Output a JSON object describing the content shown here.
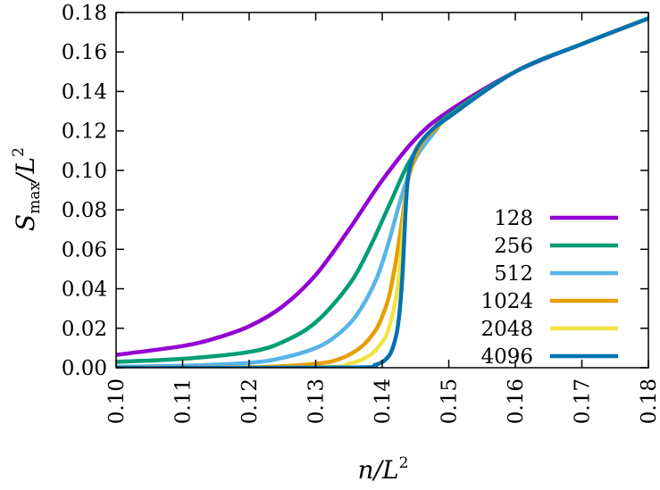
{
  "chart_data": {
    "type": "line",
    "xlabel": "n/L²",
    "ylabel": "S_max/L²",
    "xlim": [
      0.1,
      0.18
    ],
    "ylim": [
      0.0,
      0.18
    ],
    "x_ticks": [
      "0.10",
      "0.11",
      "0.12",
      "0.13",
      "0.14",
      "0.15",
      "0.16",
      "0.17",
      "0.18"
    ],
    "y_ticks": [
      "0.00",
      "0.02",
      "0.04",
      "0.06",
      "0.08",
      "0.10",
      "0.12",
      "0.14",
      "0.16",
      "0.18"
    ],
    "grid": false,
    "legend_position": "right",
    "series": [
      {
        "name": "128",
        "color": "#9400d3",
        "x": [
          0.1,
          0.11,
          0.115,
          0.12,
          0.125,
          0.13,
          0.135,
          0.14,
          0.145,
          0.15,
          0.16,
          0.17,
          0.18
        ],
        "y": [
          0.0065,
          0.011,
          0.015,
          0.021,
          0.031,
          0.047,
          0.07,
          0.095,
          0.116,
          0.13,
          0.15,
          0.164,
          0.177
        ]
      },
      {
        "name": "256",
        "color": "#009e73",
        "x": [
          0.1,
          0.11,
          0.12,
          0.125,
          0.13,
          0.135,
          0.138,
          0.141,
          0.144,
          0.147,
          0.15,
          0.16,
          0.17,
          0.18
        ],
        "y": [
          0.003,
          0.0045,
          0.008,
          0.013,
          0.023,
          0.042,
          0.06,
          0.082,
          0.104,
          0.118,
          0.128,
          0.15,
          0.164,
          0.177
        ]
      },
      {
        "name": "512",
        "color": "#56b4e9",
        "x": [
          0.1,
          0.11,
          0.12,
          0.125,
          0.13,
          0.133,
          0.136,
          0.139,
          0.141,
          0.143,
          0.145,
          0.148,
          0.15,
          0.16,
          0.17,
          0.18
        ],
        "y": [
          0.0005,
          0.001,
          0.0025,
          0.005,
          0.01,
          0.016,
          0.026,
          0.044,
          0.064,
          0.088,
          0.106,
          0.12,
          0.127,
          0.15,
          0.164,
          0.177
        ]
      },
      {
        "name": "1024",
        "color": "#e69f00",
        "x": [
          0.1,
          0.12,
          0.13,
          0.134,
          0.137,
          0.139,
          0.14,
          0.141,
          0.142,
          0.143,
          0.144,
          0.146,
          0.148,
          0.15,
          0.16,
          0.17,
          0.18
        ],
        "y": [
          0.0,
          0.0002,
          0.002,
          0.005,
          0.011,
          0.019,
          0.026,
          0.036,
          0.053,
          0.075,
          0.097,
          0.114,
          0.121,
          0.127,
          0.15,
          0.164,
          0.177
        ]
      },
      {
        "name": "2048",
        "color": "#f0e442",
        "x": [
          0.1,
          0.13,
          0.135,
          0.138,
          0.14,
          0.141,
          0.142,
          0.1425,
          0.143,
          0.1435,
          0.144,
          0.145,
          0.147,
          0.15,
          0.16,
          0.17,
          0.18
        ],
        "y": [
          0.0,
          0.0002,
          0.002,
          0.006,
          0.013,
          0.02,
          0.034,
          0.046,
          0.064,
          0.084,
          0.099,
          0.11,
          0.119,
          0.127,
          0.15,
          0.164,
          0.177
        ]
      },
      {
        "name": "4096",
        "color": "#0072b2",
        "x": [
          0.1,
          0.135,
          0.139,
          0.141,
          0.142,
          0.1425,
          0.143,
          0.1433,
          0.1436,
          0.144,
          0.145,
          0.147,
          0.15,
          0.16,
          0.17,
          0.18
        ],
        "y": [
          0.0,
          0.0001,
          0.0015,
          0.006,
          0.015,
          0.025,
          0.045,
          0.065,
          0.085,
          0.099,
          0.11,
          0.119,
          0.127,
          0.15,
          0.164,
          0.177
        ]
      }
    ]
  }
}
